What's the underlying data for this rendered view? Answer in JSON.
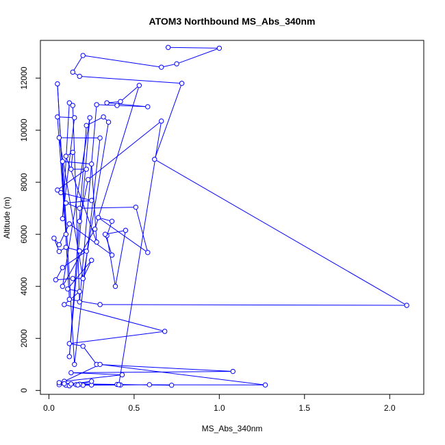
{
  "chart_data": {
    "type": "line",
    "title": "ATOM3 Northbound MS_Abs_340nm",
    "xlabel": "MS_Abs_340nm",
    "ylabel": "Altitude (m)",
    "xlim": [
      -0.05,
      2.2
    ],
    "ylim": [
      -150,
      13450
    ],
    "x_ticks": [
      0.0,
      0.5,
      1.0,
      1.5,
      2.0
    ],
    "x_tick_labels": [
      "0.0",
      "0.5",
      "1.0",
      "1.5",
      "2.0"
    ],
    "y_ticks": [
      0,
      2000,
      4000,
      6000,
      8000,
      10000,
      12000
    ],
    "y_tick_labels": [
      "0",
      "2000",
      "4000",
      "6000",
      "8000",
      "10000",
      "12000"
    ],
    "series_color": "#0000ff",
    "marker": "open-circle",
    "grid": false,
    "series": [
      {
        "points": [
          [
            0.7,
            13180
          ],
          [
            1.0,
            13150
          ],
          [
            0.75,
            12550
          ],
          [
            0.66,
            12420
          ],
          [
            0.2,
            12870
          ],
          [
            0.14,
            12230
          ],
          [
            0.18,
            12070
          ],
          [
            0.78,
            11800
          ],
          [
            0.62,
            8880
          ],
          [
            2.1,
            3270
          ],
          [
            0.3,
            3300
          ],
          [
            0.12,
            3500
          ],
          [
            0.05,
            11780
          ],
          [
            0.1,
            6000
          ],
          [
            0.05,
            10510
          ],
          [
            0.15,
            10480
          ],
          [
            0.08,
            6600
          ],
          [
            0.12,
            11050
          ],
          [
            0.14,
            10950
          ],
          [
            0.18,
            3400
          ],
          [
            0.28,
            10980
          ],
          [
            0.4,
            10950
          ],
          [
            0.58,
            10900
          ],
          [
            0.34,
            11050
          ],
          [
            0.42,
            11100
          ],
          [
            0.53,
            11720
          ],
          [
            0.27,
            6200
          ],
          [
            0.08,
            4000
          ],
          [
            0.24,
            10480
          ],
          [
            0.12,
            1300
          ],
          [
            0.22,
            10180
          ],
          [
            0.32,
            10510
          ],
          [
            0.35,
            10310
          ],
          [
            0.2,
            4300
          ],
          [
            0.06,
            9710
          ],
          [
            0.3,
            9700
          ],
          [
            0.15,
            1000
          ],
          [
            0.08,
            8800
          ],
          [
            0.25,
            8700
          ],
          [
            0.28,
            5700
          ],
          [
            0.1,
            9000
          ],
          [
            0.14,
            9150
          ],
          [
            0.13,
            8500
          ],
          [
            0.22,
            8500
          ],
          [
            0.05,
            7700
          ],
          [
            0.07,
            7600
          ],
          [
            0.25,
            7300
          ],
          [
            0.1,
            7200
          ],
          [
            0.18,
            7000
          ],
          [
            0.51,
            7040
          ],
          [
            0.58,
            5300
          ],
          [
            0.29,
            6640
          ],
          [
            0.37,
            6500
          ],
          [
            0.34,
            5950
          ],
          [
            0.39,
            4000
          ],
          [
            0.45,
            6150
          ],
          [
            0.33,
            6000
          ],
          [
            0.37,
            5200
          ],
          [
            0.12,
            6400
          ],
          [
            0.06,
            5600
          ],
          [
            0.03,
            5850
          ],
          [
            0.06,
            5340
          ],
          [
            0.1,
            5500
          ],
          [
            0.18,
            5360
          ],
          [
            0.22,
            5350
          ],
          [
            0.08,
            4720
          ],
          [
            0.04,
            4250
          ],
          [
            0.14,
            4300
          ],
          [
            0.2,
            4300
          ],
          [
            0.25,
            5000
          ],
          [
            0.11,
            3900
          ],
          [
            0.18,
            3800
          ],
          [
            0.09,
            3300
          ],
          [
            0.68,
            2270
          ],
          [
            0.12,
            1800
          ],
          [
            0.2,
            1700
          ],
          [
            0.28,
            1000
          ],
          [
            1.08,
            730
          ],
          [
            0.13,
            680
          ],
          [
            0.43,
            600
          ],
          [
            0.09,
            350
          ],
          [
            0.3,
            1000
          ],
          [
            1.27,
            210
          ],
          [
            0.06,
            220
          ],
          [
            0.1,
            200
          ],
          [
            0.25,
            210
          ],
          [
            0.16,
            220
          ],
          [
            0.2,
            200
          ],
          [
            0.42,
            210
          ],
          [
            0.59,
            220
          ],
          [
            0.72,
            200
          ],
          [
            0.4,
            230
          ],
          [
            0.09,
            260
          ],
          [
            0.12,
            180
          ],
          [
            0.18,
            240
          ],
          [
            0.25,
            350
          ],
          [
            0.13,
            250
          ],
          [
            0.06,
            300
          ],
          [
            0.17,
            210
          ],
          [
            0.41,
            220
          ],
          [
            0.66,
            10350
          ],
          [
            0.23,
            8100
          ],
          [
            0.18,
            6500
          ]
        ]
      }
    ]
  }
}
